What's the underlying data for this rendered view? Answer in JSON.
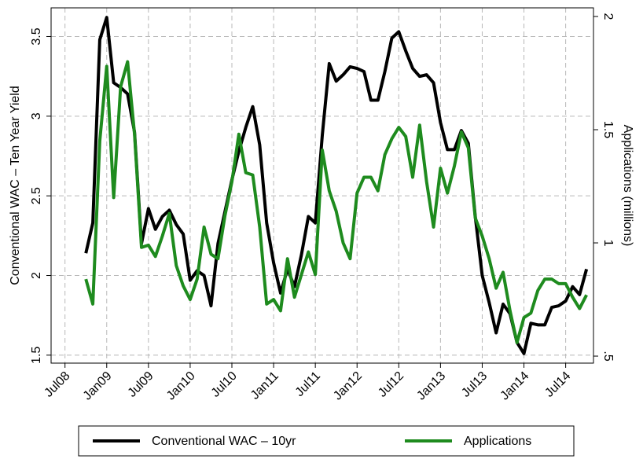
{
  "chart_data": {
    "type": "line",
    "y_label": "Conventional WAC – Ten Year Yield",
    "y2_label": "Applications (millions)",
    "x": [
      "2008-10",
      "2008-11",
      "2008-12",
      "2009-01",
      "2009-02",
      "2009-03",
      "2009-04",
      "2009-05",
      "2009-06",
      "2009-07",
      "2009-08",
      "2009-09",
      "2009-10",
      "2009-11",
      "2009-12",
      "2010-01",
      "2010-02",
      "2010-03",
      "2010-04",
      "2010-05",
      "2010-06",
      "2010-07",
      "2010-08",
      "2010-09",
      "2010-10",
      "2010-11",
      "2010-12",
      "2011-01",
      "2011-02",
      "2011-03",
      "2011-04",
      "2011-05",
      "2011-06",
      "2011-07",
      "2011-08",
      "2011-09",
      "2011-10",
      "2011-11",
      "2011-12",
      "2012-01",
      "2012-02",
      "2012-03",
      "2012-04",
      "2012-05",
      "2012-06",
      "2012-07",
      "2012-08",
      "2012-09",
      "2012-10",
      "2012-11",
      "2012-12",
      "2013-01",
      "2013-02",
      "2013-03",
      "2013-04",
      "2013-05",
      "2013-06",
      "2013-07",
      "2013-08",
      "2013-09",
      "2013-10",
      "2013-11",
      "2013-12",
      "2014-01",
      "2014-02",
      "2014-03",
      "2014-04",
      "2014-05",
      "2014-06",
      "2014-07",
      "2014-08",
      "2014-09",
      "2014-10"
    ],
    "series": [
      {
        "name": "Conventional WAC – 10yr",
        "color": "#000000",
        "axis": "y",
        "values": [
          2.14,
          2.33,
          3.48,
          3.62,
          3.21,
          3.18,
          3.14,
          2.9,
          2.2,
          2.42,
          2.29,
          2.37,
          2.41,
          2.32,
          2.26,
          1.97,
          2.03,
          2.0,
          1.81,
          2.2,
          2.4,
          2.6,
          2.78,
          2.93,
          3.06,
          2.82,
          2.33,
          2.08,
          1.89,
          2.04,
          1.93,
          2.13,
          2.37,
          2.33,
          2.88,
          3.33,
          3.22,
          3.26,
          3.31,
          3.3,
          3.28,
          3.1,
          3.1,
          3.28,
          3.49,
          3.53,
          3.41,
          3.3,
          3.25,
          3.26,
          3.21,
          2.96,
          2.79,
          2.79,
          2.91,
          2.83,
          2.37,
          2.0,
          1.83,
          1.64,
          1.82,
          1.76,
          1.58,
          1.51,
          1.7,
          1.69,
          1.69,
          1.8,
          1.81,
          1.84,
          1.93,
          1.88,
          2.04
        ]
      },
      {
        "name": "Applications",
        "color": "#1e8b1e",
        "axis": "y2",
        "values": [
          0.84,
          0.73,
          1.45,
          1.78,
          1.2,
          1.69,
          1.8,
          1.48,
          0.98,
          0.99,
          0.94,
          1.03,
          1.13,
          0.9,
          0.81,
          0.75,
          0.84,
          1.07,
          0.95,
          0.93,
          1.12,
          1.27,
          1.48,
          1.31,
          1.3,
          1.07,
          0.73,
          0.75,
          0.7,
          0.93,
          0.76,
          0.86,
          0.96,
          0.86,
          1.41,
          1.23,
          1.14,
          1.0,
          0.93,
          1.22,
          1.29,
          1.29,
          1.23,
          1.39,
          1.46,
          1.51,
          1.47,
          1.29,
          1.52,
          1.27,
          1.07,
          1.33,
          1.22,
          1.34,
          1.49,
          1.42,
          1.11,
          1.03,
          0.93,
          0.8,
          0.87,
          0.7,
          0.56,
          0.67,
          0.69,
          0.79,
          0.84,
          0.84,
          0.82,
          0.82,
          0.76,
          0.71,
          0.77
        ]
      }
    ],
    "xlim": [
      "2008-05",
      "2014-11"
    ],
    "xticks": [
      {
        "value": "2008-07",
        "label": "Jul08"
      },
      {
        "value": "2009-01",
        "label": "Jan09"
      },
      {
        "value": "2009-07",
        "label": "Jul09"
      },
      {
        "value": "2010-01",
        "label": "Jan10"
      },
      {
        "value": "2010-07",
        "label": "Jul10"
      },
      {
        "value": "2011-01",
        "label": "Jan11"
      },
      {
        "value": "2011-07",
        "label": "Jul11"
      },
      {
        "value": "2012-01",
        "label": "Jan12"
      },
      {
        "value": "2012-07",
        "label": "Jul12"
      },
      {
        "value": "2013-01",
        "label": "Jan13"
      },
      {
        "value": "2013-07",
        "label": "Jul13"
      },
      {
        "value": "2014-01",
        "label": "Jan14"
      },
      {
        "value": "2014-07",
        "label": "Jul14"
      }
    ],
    "ylim": [
      1.45,
      3.68
    ],
    "yticks": [
      1.5,
      2,
      2.5,
      3,
      3.5
    ],
    "y2lim": [
      0.469,
      2.038
    ],
    "y2ticks": [
      {
        "value": 0.5,
        "label": ".5"
      },
      1,
      1.5,
      2
    ],
    "grid": true,
    "legend": "bottom"
  }
}
